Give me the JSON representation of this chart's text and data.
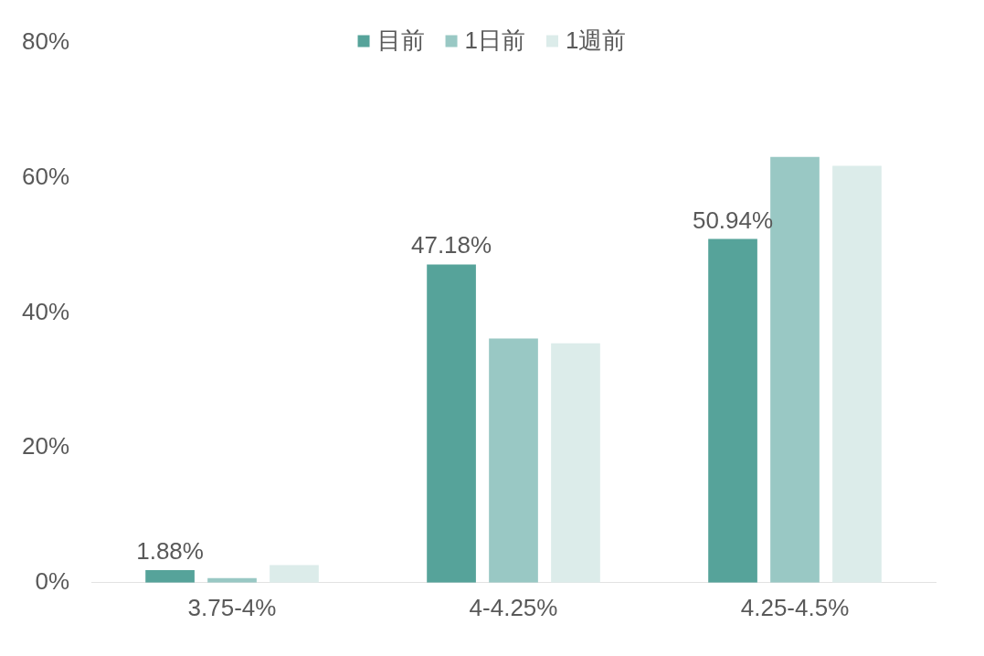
{
  "chart_data": {
    "type": "bar",
    "categories": [
      "3.75-4%",
      "4-4.25%",
      "4.25-4.5%"
    ],
    "series": [
      {
        "name": "目前",
        "color": "#56a39a",
        "values": [
          1.88,
          47.18,
          50.94
        ],
        "value_labels": [
          "1.88%",
          "47.18%",
          "50.94%"
        ]
      },
      {
        "name": "1日前",
        "color": "#99c8c4",
        "values": [
          0.7,
          36.2,
          63.1
        ]
      },
      {
        "name": "1週前",
        "color": "#dcecea",
        "values": [
          2.6,
          35.5,
          61.8
        ]
      }
    ],
    "ylim": [
      0,
      80
    ],
    "yticks": [
      {
        "value": 0,
        "label": "0%"
      },
      {
        "value": 20,
        "label": "20%"
      },
      {
        "value": 40,
        "label": "40%"
      },
      {
        "value": 60,
        "label": "60%"
      },
      {
        "value": 80,
        "label": "80%"
      }
    ],
    "grid": false,
    "legend": "top"
  }
}
